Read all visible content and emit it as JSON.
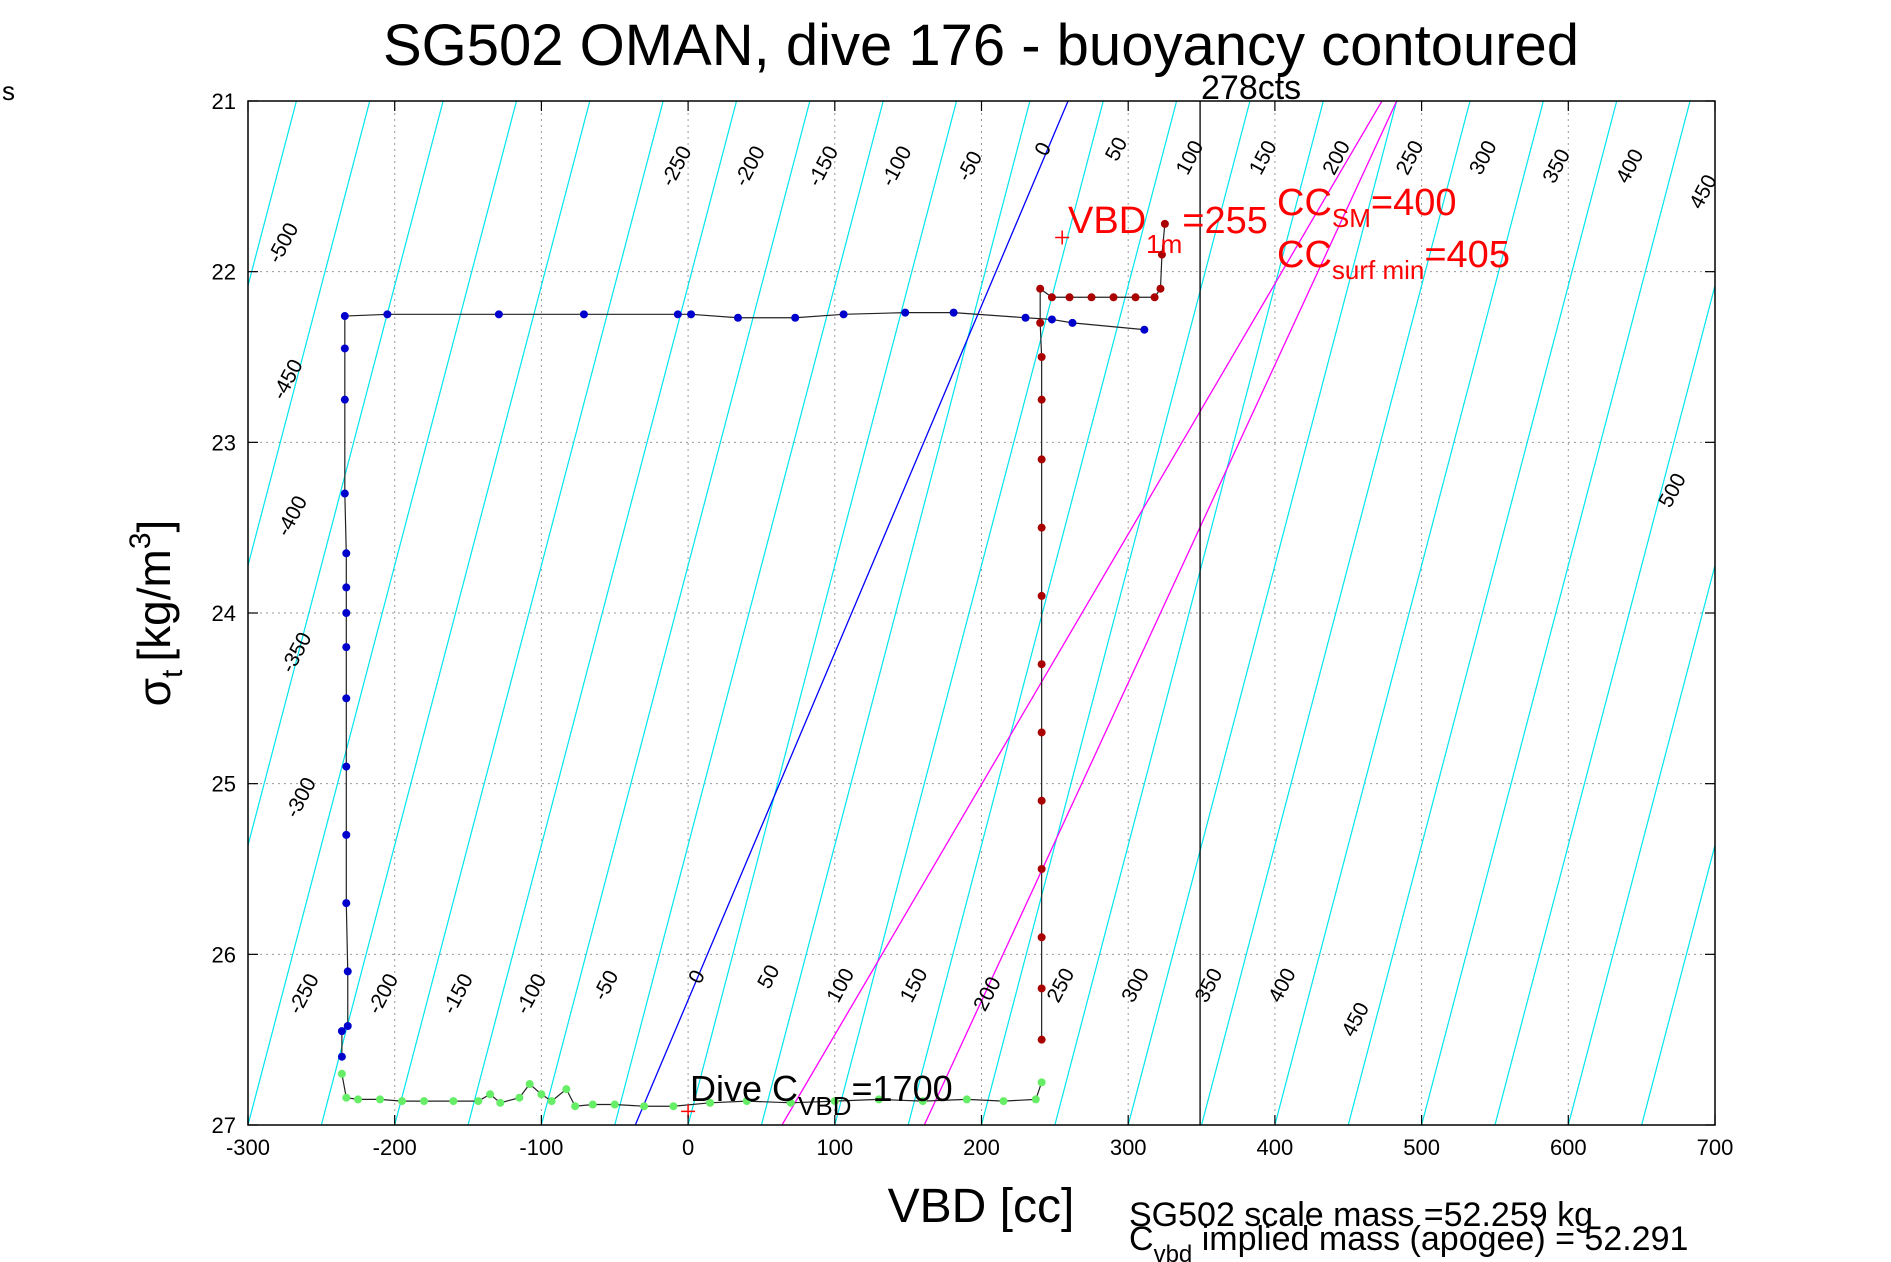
{
  "chart_data": {
    "type": "scatter",
    "title": "SG502 OMAN, dive 176 - buoyancy contoured",
    "xlabel": "VBD [cc]",
    "ylabel_main": "σ",
    "ylabel_sub": "t",
    "ylabel_units": "[kg/m",
    "ylabel_sup": "3",
    "ylabel_close": "]",
    "xlim": [
      -300,
      700
    ],
    "ylim": [
      21,
      27
    ],
    "y_reversed": true,
    "grid": true,
    "xticks": [
      -300,
      -200,
      -100,
      0,
      100,
      200,
      300,
      400,
      500,
      600,
      700
    ],
    "xtick_labels": [
      "-300",
      "-200",
      "-100",
      "0",
      "100",
      "200",
      "300",
      "400",
      "500",
      "600",
      "700"
    ],
    "yticks": [
      21,
      22,
      23,
      24,
      25,
      26,
      27
    ],
    "ytick_labels": [
      "21",
      "22",
      "23",
      "24",
      "25",
      "26",
      "27"
    ],
    "stray_label": "s",
    "contour_color": "#00e5ee",
    "contour_step": 50,
    "contour_slope_vbd_per_sigma": -30.5,
    "contour_labels_top": [
      {
        "value": "-500",
        "x": -272,
        "y": 21.85
      },
      {
        "value": "-250",
        "x": -4,
        "y": 21.4
      },
      {
        "value": "-200",
        "x": 46,
        "y": 21.4
      },
      {
        "value": "-150",
        "x": 96,
        "y": 21.4
      },
      {
        "value": "-100",
        "x": 146,
        "y": 21.4
      },
      {
        "value": "-50",
        "x": 196,
        "y": 21.4
      },
      {
        "value": "0",
        "x": 246,
        "y": 21.3
      },
      {
        "value": "50",
        "x": 296,
        "y": 21.3
      },
      {
        "value": "100",
        "x": 346,
        "y": 21.35
      },
      {
        "value": "150",
        "x": 396,
        "y": 21.35
      },
      {
        "value": "200",
        "x": 446,
        "y": 21.35
      },
      {
        "value": "250",
        "x": 496,
        "y": 21.35
      },
      {
        "value": "300",
        "x": 546,
        "y": 21.35
      },
      {
        "value": "350",
        "x": 596,
        "y": 21.4
      },
      {
        "value": "400",
        "x": 646,
        "y": 21.4
      },
      {
        "value": "450",
        "x": 696,
        "y": 21.55
      },
      {
        "value": "-450",
        "x": -269,
        "y": 22.65
      },
      {
        "value": "-400",
        "x": -266,
        "y": 23.45
      },
      {
        "value": "-350",
        "x": -263,
        "y": 24.25
      },
      {
        "value": "-300",
        "x": -260,
        "y": 25.1
      },
      {
        "value": "500",
        "x": 675,
        "y": 23.3
      }
    ],
    "contour_labels_bottom": [
      {
        "value": "-250",
        "x": -258,
        "y": 26.25
      },
      {
        "value": "-200",
        "x": -204,
        "y": 26.25
      },
      {
        "value": "-150",
        "x": -153,
        "y": 26.25
      },
      {
        "value": "-100",
        "x": -103,
        "y": 26.25
      },
      {
        "value": "-50",
        "x": -52,
        "y": 26.2
      },
      {
        "value": "0",
        "x": 10,
        "y": 26.15
      },
      {
        "value": "50",
        "x": 59,
        "y": 26.15
      },
      {
        "value": "100",
        "x": 108,
        "y": 26.2
      },
      {
        "value": "150",
        "x": 158,
        "y": 26.2
      },
      {
        "value": "200",
        "x": 208,
        "y": 26.25
      },
      {
        "value": "250",
        "x": 258,
        "y": 26.2
      },
      {
        "value": "300",
        "x": 309,
        "y": 26.2
      },
      {
        "value": "350",
        "x": 359,
        "y": 26.2
      },
      {
        "value": "400",
        "x": 409,
        "y": 26.2
      },
      {
        "value": "450",
        "x": 459,
        "y": 26.4
      }
    ],
    "special_lines": [
      {
        "name": "zero",
        "color": "#0000ff",
        "x_at_27": -36,
        "x_at_21": 259
      },
      {
        "name": "cc_sm",
        "color": "#ff00ff",
        "x_at_27": 64,
        "x_at_21": 473
      },
      {
        "name": "cc_surf_min",
        "color": "#ff00ff",
        "x_at_27": 161,
        "x_at_21": 483
      }
    ],
    "vertical_line": {
      "x": 349,
      "label": "278cts",
      "color": "#000000"
    },
    "vbd_1m_marker": {
      "x": 255,
      "y": 21.8,
      "color": "#ff0000"
    },
    "dive_cvbd_marker": {
      "x": 0,
      "y": 26.92,
      "color": "#ff0000"
    },
    "descent": {
      "color": "#0000cc",
      "points": [
        [
          311,
          22.34
        ],
        [
          262,
          22.3
        ],
        [
          248,
          22.28
        ],
        [
          230,
          22.27
        ],
        [
          181,
          22.24
        ],
        [
          148,
          22.24
        ],
        [
          106,
          22.25
        ],
        [
          73,
          22.27
        ],
        [
          34,
          22.27
        ],
        [
          2,
          22.25
        ],
        [
          -7,
          22.25
        ],
        [
          -71,
          22.25
        ],
        [
          -129,
          22.25
        ],
        [
          -205,
          22.25
        ],
        [
          -234,
          22.26
        ],
        [
          -234,
          22.45
        ],
        [
          -234,
          22.75
        ],
        [
          -234,
          23.3
        ],
        [
          -233,
          23.65
        ],
        [
          -233,
          23.85
        ],
        [
          -233,
          24.0
        ],
        [
          -233,
          24.2
        ],
        [
          -233,
          24.5
        ],
        [
          -233,
          24.9
        ],
        [
          -233,
          25.3
        ],
        [
          -233,
          25.7
        ],
        [
          -232,
          26.1
        ],
        [
          -232,
          26.42
        ],
        [
          -236,
          26.45
        ],
        [
          -236,
          26.6
        ]
      ]
    },
    "bottom": {
      "color": "#66ee66",
      "points": [
        [
          -236,
          26.7
        ],
        [
          -233,
          26.84
        ],
        [
          -225,
          26.85
        ],
        [
          -210,
          26.85
        ],
        [
          -195,
          26.86
        ],
        [
          -180,
          26.86
        ],
        [
          -160,
          26.86
        ],
        [
          -143,
          26.86
        ],
        [
          -135,
          26.82
        ],
        [
          -128,
          26.87
        ],
        [
          -115,
          26.84
        ],
        [
          -108,
          26.76
        ],
        [
          -100,
          26.82
        ],
        [
          -93,
          26.86
        ],
        [
          -83,
          26.79
        ],
        [
          -77,
          26.89
        ],
        [
          -65,
          26.88
        ],
        [
          -50,
          26.88
        ],
        [
          -30,
          26.89
        ],
        [
          -10,
          26.89
        ],
        [
          15,
          26.87
        ],
        [
          40,
          26.86
        ],
        [
          70,
          26.87
        ],
        [
          100,
          26.86
        ],
        [
          130,
          26.85
        ],
        [
          160,
          26.86
        ],
        [
          190,
          26.85
        ],
        [
          215,
          26.86
        ],
        [
          237,
          26.85
        ],
        [
          241,
          26.75
        ]
      ]
    },
    "ascent": {
      "color": "#aa0000",
      "points": [
        [
          241,
          26.5
        ],
        [
          241,
          26.2
        ],
        [
          241,
          25.9
        ],
        [
          241,
          25.5
        ],
        [
          241,
          25.1
        ],
        [
          241,
          24.7
        ],
        [
          241,
          24.3
        ],
        [
          241,
          23.9
        ],
        [
          241,
          23.5
        ],
        [
          241,
          23.1
        ],
        [
          241,
          22.75
        ],
        [
          241,
          22.5
        ],
        [
          240,
          22.3
        ],
        [
          240,
          22.1
        ],
        [
          248,
          22.15
        ],
        [
          260,
          22.15
        ],
        [
          275,
          22.15
        ],
        [
          290,
          22.15
        ],
        [
          305,
          22.15
        ],
        [
          318,
          22.15
        ],
        [
          322,
          22.1
        ],
        [
          323,
          21.9
        ],
        [
          325,
          21.72
        ]
      ]
    },
    "annotations": {
      "vbd_1m_main": "VBD",
      "vbd_1m_sub": "1m",
      "vbd_1m_value": "=255",
      "cc_sm_main": "CC",
      "cc_sm_sub": "SM",
      "cc_sm_value": "=400",
      "cc_surf_main": "CC",
      "cc_surf_sub": "surf min",
      "cc_surf_value": "=405",
      "dive_cvbd_main": "Dive C",
      "dive_cvbd_sub": "VBD",
      "dive_cvbd_value": "=1700",
      "cts_label": "278cts",
      "scale_mass": "SG502 scale mass =52.259 kg",
      "implied_main": "C",
      "implied_sub": "vbd",
      "implied_text": " implied mass (apogee) = 52.291"
    }
  }
}
